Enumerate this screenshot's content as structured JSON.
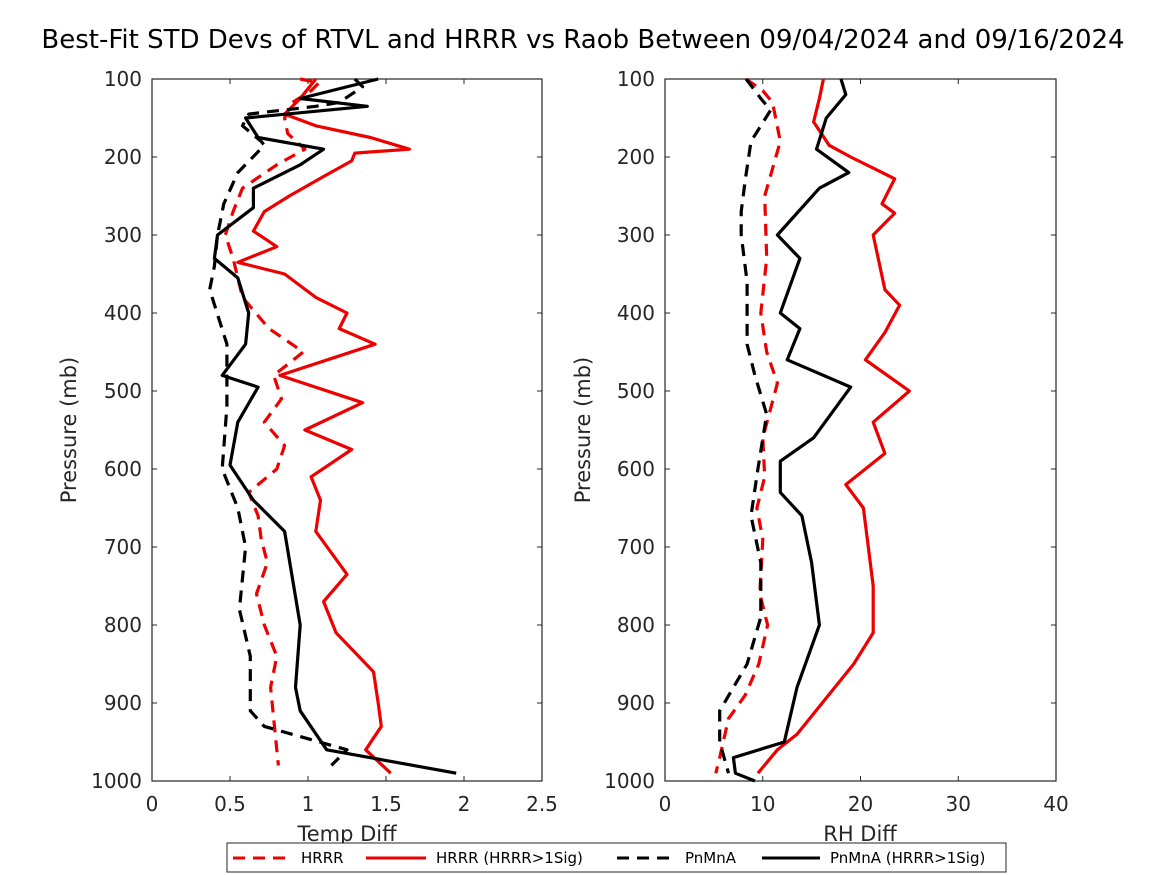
{
  "title": "Best-Fit STD Devs of RTVL and HRRR vs Raob Between 09/04/2024 and 09/16/2024",
  "legend": {
    "placement": "bottom-center",
    "entries": [
      {
        "label": "HRRR",
        "color": "#ee0000",
        "dash": "dashed"
      },
      {
        "label": "HRRR (HRRR>1Sig)",
        "color": "#ee0000",
        "dash": "solid"
      },
      {
        "label": "PnMnA",
        "color": "#000000",
        "dash": "dashed"
      },
      {
        "label": "PnMnA (HRRR>1Sig)",
        "color": "#000000",
        "dash": "solid"
      }
    ]
  },
  "chart_data": [
    {
      "type": "line",
      "title": "",
      "xlabel": "Temp Diff",
      "ylabel": "Pressure (mb)",
      "xlim": [
        0,
        2.5
      ],
      "ylim": [
        100,
        1000
      ],
      "y_reversed": true,
      "xticks": [
        "0",
        "0.5",
        "1",
        "1.5",
        "2",
        "2.5"
      ],
      "yticks": [
        "100",
        "200",
        "300",
        "400",
        "500",
        "600",
        "700",
        "800",
        "900",
        "1000"
      ],
      "grid": false,
      "series": [
        {
          "name": "HRRR",
          "color": "#ee0000",
          "dash": "dashed",
          "points": [
            [
              0.95,
              100
            ],
            [
              1.07,
              105
            ],
            [
              1.02,
              115
            ],
            [
              0.9,
              130
            ],
            [
              0.85,
              150
            ],
            [
              0.87,
              170
            ],
            [
              0.98,
              190
            ],
            [
              0.8,
              210
            ],
            [
              0.58,
              240
            ],
            [
              0.52,
              270
            ],
            [
              0.47,
              300
            ],
            [
              0.52,
              330
            ],
            [
              0.58,
              380
            ],
            [
              0.75,
              420
            ],
            [
              0.97,
              450
            ],
            [
              0.78,
              480
            ],
            [
              0.83,
              510
            ],
            [
              0.72,
              540
            ],
            [
              0.85,
              570
            ],
            [
              0.8,
              600
            ],
            [
              0.62,
              630
            ],
            [
              0.68,
              660
            ],
            [
              0.7,
              690
            ],
            [
              0.74,
              720
            ],
            [
              0.67,
              760
            ],
            [
              0.72,
              800
            ],
            [
              0.8,
              840
            ],
            [
              0.76,
              880
            ],
            [
              0.78,
              920
            ],
            [
              0.8,
              960
            ],
            [
              0.81,
              980
            ]
          ]
        },
        {
          "name": "HRRR (HRRR>1Sig)",
          "color": "#ee0000",
          "dash": "solid",
          "points": [
            [
              1.05,
              100
            ],
            [
              0.95,
              125
            ],
            [
              0.85,
              145
            ],
            [
              1.05,
              160
            ],
            [
              1.4,
              175
            ],
            [
              1.65,
              190
            ],
            [
              1.3,
              195
            ],
            [
              1.28,
              205
            ],
            [
              1.1,
              225
            ],
            [
              0.88,
              250
            ],
            [
              0.72,
              270
            ],
            [
              0.65,
              295
            ],
            [
              0.8,
              315
            ],
            [
              0.55,
              335
            ],
            [
              0.85,
              350
            ],
            [
              1.05,
              380
            ],
            [
              1.25,
              400
            ],
            [
              1.2,
              420
            ],
            [
              1.43,
              440
            ],
            [
              0.82,
              480
            ],
            [
              1.35,
              515
            ],
            [
              0.98,
              550
            ],
            [
              1.28,
              575
            ],
            [
              1.02,
              610
            ],
            [
              1.08,
              640
            ],
            [
              1.05,
              680
            ],
            [
              1.25,
              735
            ],
            [
              1.1,
              770
            ],
            [
              1.18,
              810
            ],
            [
              1.42,
              860
            ],
            [
              1.45,
              900
            ],
            [
              1.47,
              930
            ],
            [
              1.37,
              960
            ],
            [
              1.53,
              990
            ]
          ]
        },
        {
          "name": "PnMnA",
          "color": "#000000",
          "dash": "dashed",
          "points": [
            [
              1.3,
              100
            ],
            [
              1.35,
              110
            ],
            [
              1.2,
              130
            ],
            [
              1.05,
              135
            ],
            [
              0.62,
              145
            ],
            [
              0.58,
              160
            ],
            [
              0.7,
              180
            ],
            [
              0.72,
              185
            ],
            [
              0.55,
              220
            ],
            [
              0.46,
              260
            ],
            [
              0.42,
              300
            ],
            [
              0.4,
              340
            ],
            [
              0.37,
              370
            ],
            [
              0.48,
              440
            ],
            [
              0.48,
              520
            ],
            [
              0.45,
              600
            ],
            [
              0.55,
              650
            ],
            [
              0.6,
              700
            ],
            [
              0.56,
              780
            ],
            [
              0.63,
              840
            ],
            [
              0.63,
              890
            ],
            [
              0.63,
              910
            ],
            [
              0.72,
              930
            ],
            [
              1.25,
              960
            ],
            [
              1.15,
              980
            ]
          ]
        },
        {
          "name": "PnMnA (HRRR>1Sig)",
          "color": "#000000",
          "dash": "solid",
          "points": [
            [
              1.45,
              100
            ],
            [
              0.95,
              125
            ],
            [
              1.38,
              135
            ],
            [
              0.6,
              150
            ],
            [
              0.68,
              175
            ],
            [
              1.1,
              190
            ],
            [
              0.95,
              210
            ],
            [
              0.65,
              240
            ],
            [
              0.65,
              265
            ],
            [
              0.42,
              300
            ],
            [
              0.4,
              330
            ],
            [
              0.55,
              355
            ],
            [
              0.62,
              400
            ],
            [
              0.6,
              440
            ],
            [
              0.45,
              480
            ],
            [
              0.68,
              495
            ],
            [
              0.55,
              540
            ],
            [
              0.5,
              595
            ],
            [
              0.65,
              640
            ],
            [
              0.85,
              680
            ],
            [
              0.9,
              740
            ],
            [
              0.95,
              800
            ],
            [
              0.92,
              880
            ],
            [
              0.95,
              910
            ],
            [
              1.12,
              960
            ],
            [
              1.95,
              990
            ]
          ]
        }
      ]
    },
    {
      "type": "line",
      "title": "",
      "xlabel": "RH Diff",
      "ylabel": "Pressure (mb)",
      "xlim": [
        0,
        40
      ],
      "ylim": [
        100,
        1000
      ],
      "y_reversed": true,
      "xticks": [
        "0",
        "10",
        "20",
        "30",
        "40"
      ],
      "yticks": [
        "100",
        "200",
        "300",
        "400",
        "500",
        "600",
        "700",
        "800",
        "900",
        "1000"
      ],
      "grid": false,
      "series": [
        {
          "name": "HRRR",
          "color": "#ee0000",
          "dash": "dashed",
          "points": [
            [
              8.3,
              100
            ],
            [
              10,
              115
            ],
            [
              11,
              130
            ],
            [
              11.8,
              180
            ],
            [
              10.2,
              250
            ],
            [
              10.4,
              330
            ],
            [
              9.8,
              400
            ],
            [
              10.4,
              450
            ],
            [
              11.5,
              490
            ],
            [
              10,
              560
            ],
            [
              10.2,
              610
            ],
            [
              9.4,
              650
            ],
            [
              10,
              690
            ],
            [
              9.7,
              760
            ],
            [
              10.5,
              800
            ],
            [
              9.6,
              850
            ],
            [
              8.2,
              890
            ],
            [
              6.5,
              920
            ],
            [
              5.6,
              970
            ],
            [
              5.2,
              990
            ]
          ]
        },
        {
          "name": "HRRR (HRRR>1Sig)",
          "color": "#ee0000",
          "dash": "solid",
          "points": [
            [
              16.2,
              100
            ],
            [
              15.8,
              125
            ],
            [
              15.2,
              155
            ],
            [
              16.8,
              185
            ],
            [
              19,
              200
            ],
            [
              23.5,
              228
            ],
            [
              22.2,
              260
            ],
            [
              23.5,
              272
            ],
            [
              21.3,
              300
            ],
            [
              22.5,
              370
            ],
            [
              24,
              390
            ],
            [
              22.5,
              425
            ],
            [
              20.5,
              460
            ],
            [
              25,
              500
            ],
            [
              21.3,
              540
            ],
            [
              22.5,
              580
            ],
            [
              18.5,
              620
            ],
            [
              20.3,
              650
            ],
            [
              21.3,
              750
            ],
            [
              21.3,
              810
            ],
            [
              19.3,
              850
            ],
            [
              13.5,
              940
            ],
            [
              11.5,
              960
            ],
            [
              9.5,
              990
            ]
          ]
        },
        {
          "name": "PnMnA",
          "color": "#000000",
          "dash": "dashed",
          "points": [
            [
              8.3,
              100
            ],
            [
              9.8,
              125
            ],
            [
              10.8,
              140
            ],
            [
              8.8,
              180
            ],
            [
              8.2,
              230
            ],
            [
              7.8,
              270
            ],
            [
              7.8,
              300
            ],
            [
              8.4,
              360
            ],
            [
              8.4,
              400
            ],
            [
              8.4,
              440
            ],
            [
              9.2,
              480
            ],
            [
              10.4,
              530
            ],
            [
              9.5,
              600
            ],
            [
              8.8,
              660
            ],
            [
              9.8,
              720
            ],
            [
              9.8,
              790
            ],
            [
              8.4,
              850
            ],
            [
              5.6,
              910
            ],
            [
              5.6,
              950
            ],
            [
              6.5,
              990
            ]
          ]
        },
        {
          "name": "PnMnA (HRRR>1Sig)",
          "color": "#000000",
          "dash": "solid",
          "points": [
            [
              18,
              100
            ],
            [
              18.5,
              120
            ],
            [
              16.5,
              150
            ],
            [
              15.5,
              190
            ],
            [
              18.8,
              220
            ],
            [
              15.8,
              240
            ],
            [
              11.5,
              300
            ],
            [
              13.8,
              330
            ],
            [
              11.8,
              400
            ],
            [
              13.8,
              420
            ],
            [
              12.5,
              460
            ],
            [
              19,
              495
            ],
            [
              15.2,
              560
            ],
            [
              11.8,
              590
            ],
            [
              11.8,
              630
            ],
            [
              14,
              660
            ],
            [
              15,
              720
            ],
            [
              15.8,
              800
            ],
            [
              13.5,
              880
            ],
            [
              12.2,
              950
            ],
            [
              7,
              970
            ],
            [
              7.2,
              990
            ],
            [
              9.2,
              1000
            ]
          ]
        }
      ]
    }
  ]
}
